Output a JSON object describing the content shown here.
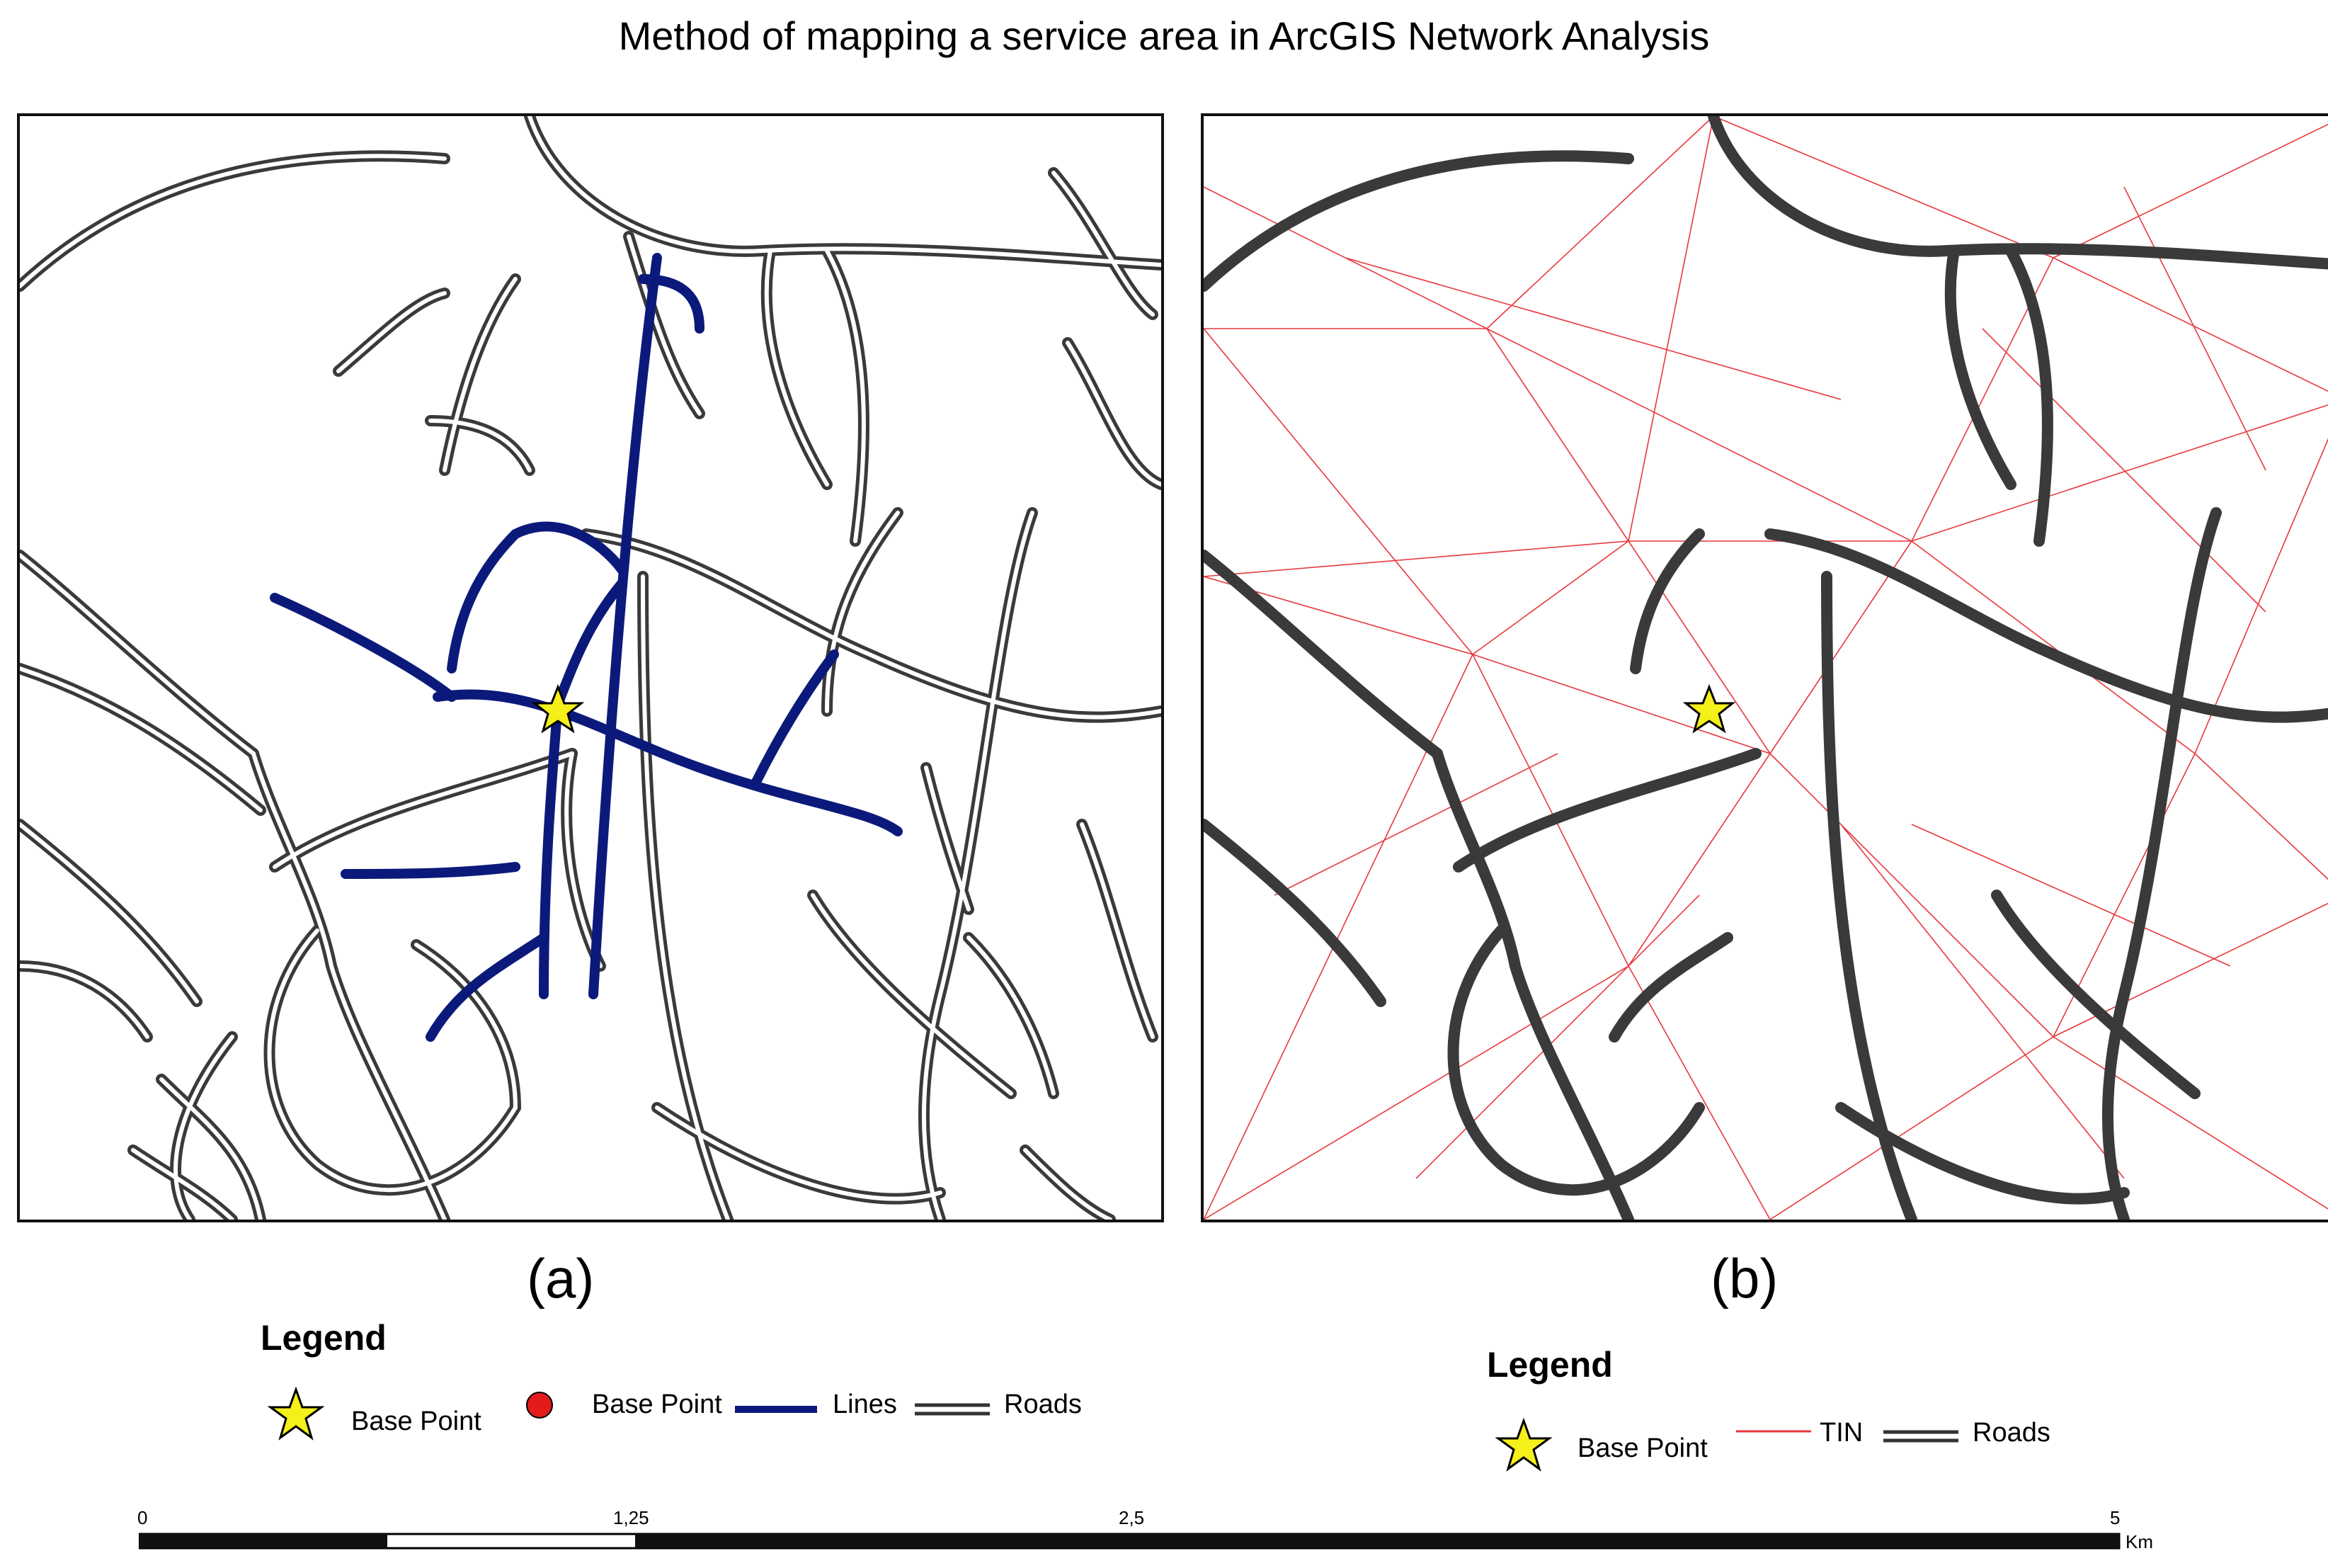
{
  "title": "Method of mapping a service area in ArcGIS Network Analysis",
  "panels": {
    "a": {
      "caption": "(a)"
    },
    "b": {
      "caption": "(b)"
    }
  },
  "legend_a": {
    "title": "Legend",
    "items": [
      {
        "symbol": "yellow-star",
        "label": "Base Point"
      },
      {
        "symbol": "red-dot",
        "label": "Base Point"
      },
      {
        "symbol": "navy-line",
        "label": "Lines"
      },
      {
        "symbol": "double-line",
        "label": "Roads"
      }
    ]
  },
  "legend_b": {
    "title": "Legend",
    "items": [
      {
        "symbol": "yellow-star",
        "label": "Base Point"
      },
      {
        "symbol": "red-thin-line",
        "label": "TIN"
      },
      {
        "symbol": "double-line",
        "label": "Roads"
      }
    ]
  },
  "scale_bar": {
    "ticks": [
      "0",
      "1,25",
      "2,5",
      "5"
    ],
    "unit": "Km"
  },
  "colors": {
    "roads": "#3a3a3a",
    "service_lines": "#0b1a7a",
    "tin": "#e8373c",
    "star_fill": "#f5ef1a",
    "base_point_dot": "#e31b1b"
  }
}
